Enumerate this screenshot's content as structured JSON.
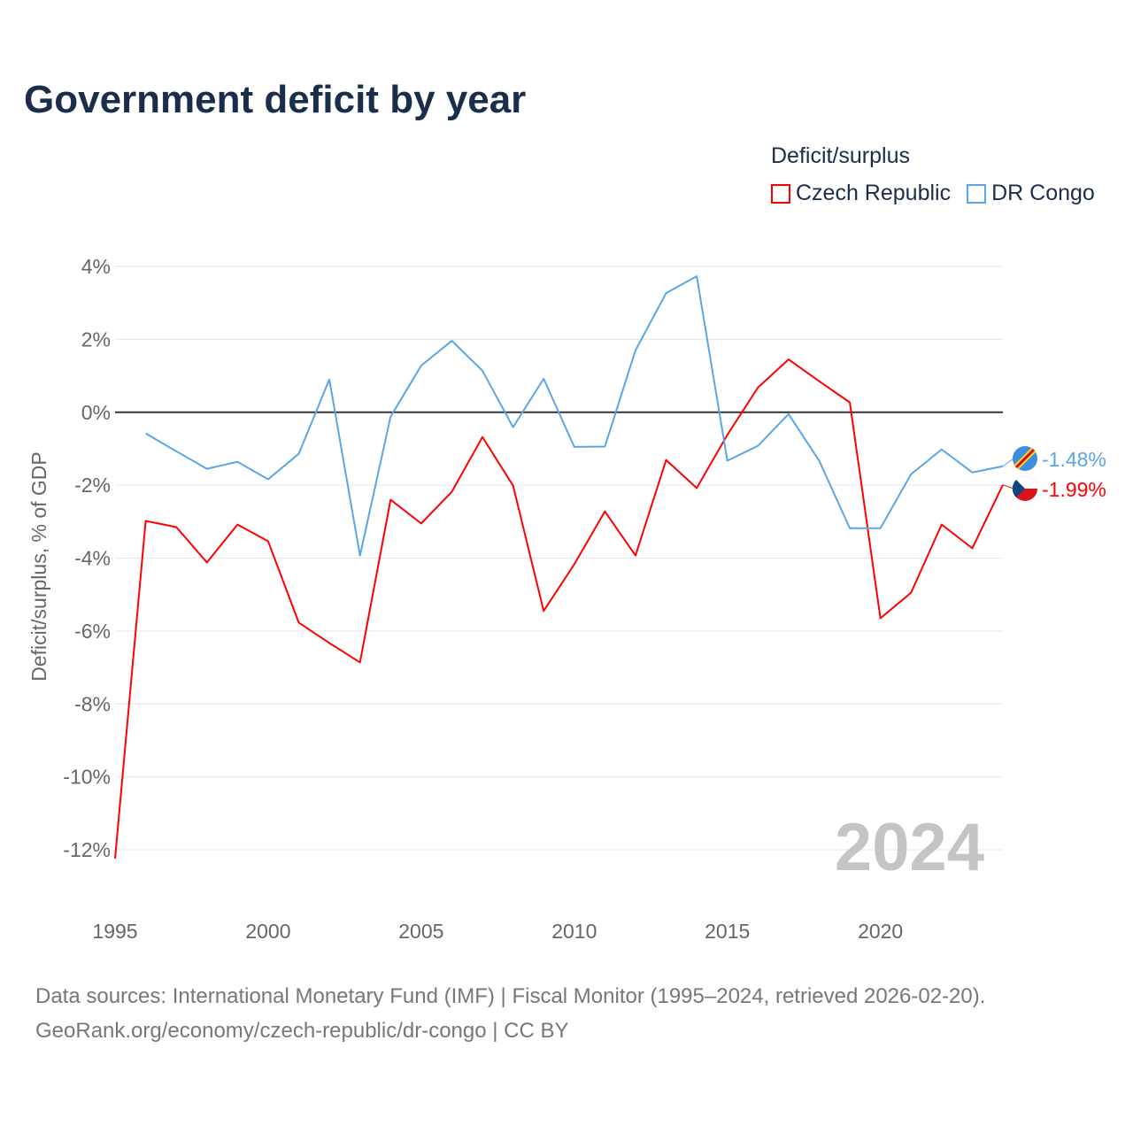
{
  "title": "Government deficit by year",
  "footer": {
    "line1": "Data sources: International Monetary Fund (IMF) | Fiscal Monitor (1995–2024, retrieved 2026-02-20).",
    "line2": "GeoRank.org/economy/czech-republic/dr-congo | CC BY"
  },
  "chart_data": {
    "type": "line",
    "title": "Government deficit by year",
    "xlabel": "",
    "ylabel": "Deficit/surplus, % of GDP",
    "ylim": [
      -12,
      4
    ],
    "xlim": [
      1995,
      2024
    ],
    "yticks": [
      4,
      2,
      0,
      -2,
      -4,
      -6,
      -8,
      -10,
      -12
    ],
    "ytick_labels": [
      "4%",
      "2%",
      "0%",
      "-2%",
      "-4%",
      "-6%",
      "-8%",
      "-10%",
      "-12%"
    ],
    "xticks": [
      1995,
      2000,
      2005,
      2010,
      2015,
      2020
    ],
    "xtick_labels": [
      "1995",
      "2000",
      "2005",
      "2010",
      "2015",
      "2020"
    ],
    "legend_title": "Deficit/surplus",
    "legend_placement": "top-right",
    "year_watermark": "2024",
    "grid": true,
    "series": [
      {
        "name": "Czech Republic",
        "color": "#ff0000",
        "end_label": "-1.99%",
        "x": [
          1995,
          1996,
          1997,
          1998,
          1999,
          2000,
          2001,
          2002,
          2003,
          2004,
          2005,
          2006,
          2007,
          2008,
          2009,
          2010,
          2011,
          2012,
          2013,
          2014,
          2015,
          2016,
          2017,
          2018,
          2019,
          2020,
          2021,
          2022,
          2023,
          2024
        ],
        "values": [
          -12.24,
          -2.98,
          -3.15,
          -4.12,
          -3.08,
          -3.54,
          -5.77,
          -6.33,
          -6.86,
          -2.4,
          -3.05,
          -2.18,
          -0.68,
          -2.01,
          -5.45,
          -4.17,
          -2.72,
          -3.93,
          -1.31,
          -2.08,
          -0.62,
          0.68,
          1.45,
          0.85,
          0.27,
          -5.65,
          -4.95,
          -3.08,
          -3.73,
          -1.99
        ]
      },
      {
        "name": "DR Congo",
        "color": "#5aa5e6",
        "end_label": "-1.48%",
        "x": [
          1996,
          1997,
          1998,
          1999,
          2000,
          2001,
          2002,
          2003,
          2004,
          2005,
          2006,
          2007,
          2008,
          2009,
          2010,
          2011,
          2012,
          2013,
          2014,
          2015,
          2016,
          2017,
          2018,
          2019,
          2020,
          2021,
          2022,
          2023,
          2024
        ],
        "values": [
          -0.58,
          -1.07,
          -1.55,
          -1.36,
          -1.84,
          -1.14,
          0.9,
          -3.93,
          -0.12,
          1.28,
          1.96,
          1.14,
          -0.41,
          0.92,
          -0.95,
          -0.94,
          1.7,
          3.27,
          3.73,
          -1.33,
          -0.92,
          -0.05,
          -1.33,
          -3.18,
          -3.18,
          -1.7,
          -1.02,
          -1.65,
          -1.48
        ]
      }
    ]
  }
}
